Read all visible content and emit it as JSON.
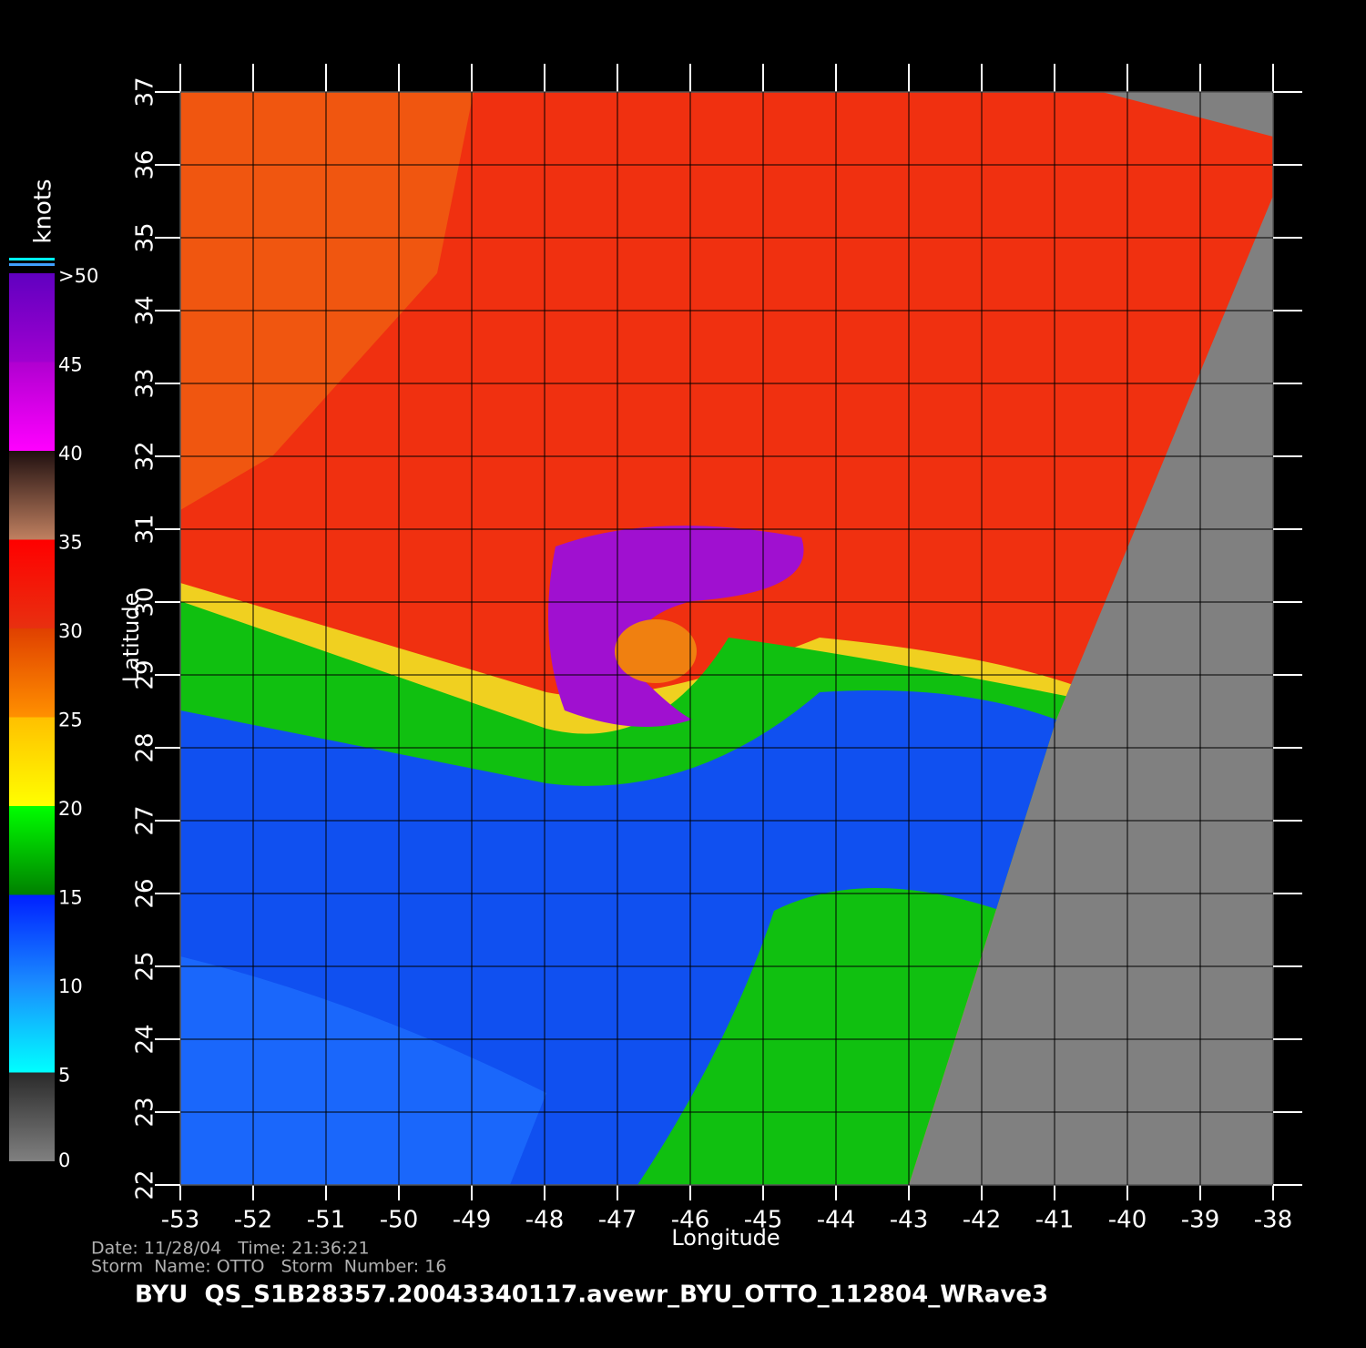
{
  "chart_data": {
    "type": "map",
    "title": "BYU  QS_S1B28357.20043340117.avewr_BYU_OTTO_112804_WRave3",
    "footer": [
      "Date: 11/28/04   Time: 21:36:21",
      "Storm  Name: OTTO   Storm  Number: 16"
    ],
    "xlabel": "Longitude",
    "ylabel": "Latitude",
    "xlim": [
      -53,
      -38
    ],
    "xticks": [
      -53,
      -52,
      -51,
      -50,
      -49,
      -48,
      -47,
      -46,
      -45,
      -44,
      -43,
      -42,
      -41,
      -40,
      -39,
      -38
    ],
    "ylim": [
      22,
      37
    ],
    "yticks": [
      22,
      23,
      24,
      25,
      26,
      27,
      28,
      29,
      30,
      31,
      32,
      33,
      34,
      35,
      36,
      37
    ],
    "grid": true,
    "colorbar": {
      "label": "knots",
      "lim": [
        0,
        50
      ],
      "ticks": [
        0,
        5,
        10,
        15,
        20,
        25,
        30,
        35,
        40,
        {
          "value": 50,
          "label": ">50"
        },
        45
      ],
      "bands": [
        {
          "from": 0,
          "to": 5,
          "colors": [
            "#808080",
            "#2a2a2a"
          ]
        },
        {
          "from": 5,
          "to": 10,
          "colors": [
            "#00ffff",
            "#1a8cff"
          ]
        },
        {
          "from": 10,
          "to": 15,
          "colors": [
            "#1a8cff",
            "#0020ff"
          ]
        },
        {
          "from": 15,
          "to": 20,
          "colors": [
            "#008000",
            "#00ff00"
          ]
        },
        {
          "from": 20,
          "to": 25,
          "colors": [
            "#ffff00",
            "#ffc000"
          ]
        },
        {
          "from": 25,
          "to": 30,
          "colors": [
            "#ff9000",
            "#e04000"
          ]
        },
        {
          "from": 30,
          "to": 35,
          "colors": [
            "#e83010",
            "#ff0000"
          ]
        },
        {
          "from": 35,
          "to": 40,
          "colors": [
            "#c08060",
            "#201010"
          ]
        },
        {
          "from": 40,
          "to": 45,
          "colors": [
            "#ff00ff",
            "#b000d0"
          ]
        },
        {
          "from": 45,
          "to": 50,
          "colors": [
            "#a000d0",
            "#6000c0"
          ]
        }
      ]
    }
  }
}
